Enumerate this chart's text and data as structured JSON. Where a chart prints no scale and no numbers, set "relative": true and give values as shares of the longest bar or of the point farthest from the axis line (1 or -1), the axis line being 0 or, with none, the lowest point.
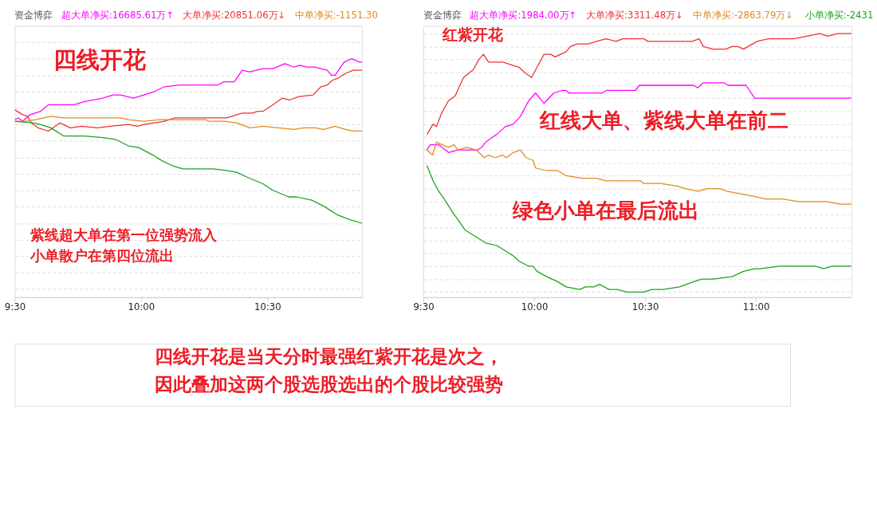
{
  "chart_data": [
    {
      "type": "line",
      "title": "资金博弈",
      "relative": true,
      "grid": "y",
      "legend": "top",
      "xlim": [
        9.5,
        10.875
      ],
      "xticks": [
        {
          "value": 9.5,
          "label": "9:30"
        },
        {
          "value": 10,
          "label": "10:00"
        },
        {
          "value": 10.5,
          "label": "10:30"
        }
      ],
      "annotations": [
        "四线开花",
        "紫线超大单在第一位强势流入",
        "小单散户在第四位流出"
      ],
      "series": [
        {
          "name": "超大单净买:16685.61万↑",
          "color": "#ff00ff",
          "x": [
            9.5,
            9.515,
            9.531,
            9.561,
            9.602,
            9.633,
            9.674,
            9.735,
            9.776,
            9.848,
            9.889,
            9.919,
            9.97,
            10.011,
            10.052,
            10.093,
            10.154,
            10.195,
            10.257,
            10.303,
            10.328,
            10.369,
            10.4,
            10.43,
            10.482,
            10.522,
            10.569,
            10.604,
            10.63,
            10.655,
            10.686,
            10.737,
            10.753,
            10.768,
            10.804,
            10.834,
            10.865,
            10.875
          ],
          "values": [
            0.63,
            0.64,
            0.62,
            0.66,
            0.68,
            0.72,
            0.72,
            0.72,
            0.74,
            0.76,
            0.78,
            0.78,
            0.76,
            0.78,
            0.8,
            0.83,
            0.84,
            0.84,
            0.84,
            0.84,
            0.86,
            0.86,
            0.93,
            0.92,
            0.94,
            0.94,
            0.97,
            0.95,
            0.96,
            0.95,
            0.95,
            0.93,
            0.9,
            0.9,
            0.98,
            1.0,
            0.98,
            0.98
          ]
        },
        {
          "name": "大单净买:20851.06万↓",
          "color": "#f03030",
          "x": [
            9.5,
            9.531,
            9.551,
            9.566,
            9.592,
            9.633,
            9.679,
            9.72,
            9.766,
            9.827,
            9.878,
            9.95,
            9.986,
            10.011,
            10.093,
            10.134,
            10.195,
            10.277,
            10.338,
            10.4,
            10.441,
            10.461,
            10.482,
            10.522,
            10.558,
            10.589,
            10.625,
            10.681,
            10.712,
            10.737,
            10.758,
            10.778,
            10.809,
            10.839,
            10.875
          ],
          "values": [
            0.69,
            0.66,
            0.65,
            0.61,
            0.58,
            0.56,
            0.61,
            0.58,
            0.59,
            0.58,
            0.59,
            0.6,
            0.59,
            0.6,
            0.62,
            0.64,
            0.64,
            0.64,
            0.64,
            0.67,
            0.67,
            0.68,
            0.68,
            0.72,
            0.76,
            0.75,
            0.77,
            0.78,
            0.83,
            0.84,
            0.87,
            0.88,
            0.91,
            0.93,
            0.93
          ]
        },
        {
          "name": "中单净买:-1151.30",
          "color": "#e08a1e",
          "x": [
            9.5,
            9.541,
            9.582,
            9.643,
            9.694,
            9.725,
            9.766,
            9.848,
            9.919,
            9.95,
            10.011,
            10.073,
            10.113,
            10.154,
            10.257,
            10.267,
            10.328,
            10.379,
            10.43,
            10.482,
            10.543,
            10.604,
            10.645,
            10.691,
            10.722,
            10.768,
            10.809,
            10.839,
            10.875
          ],
          "values": [
            0.62,
            0.62,
            0.63,
            0.65,
            0.64,
            0.64,
            0.64,
            0.64,
            0.64,
            0.63,
            0.62,
            0.63,
            0.63,
            0.63,
            0.63,
            0.62,
            0.62,
            0.61,
            0.58,
            0.59,
            0.58,
            0.57,
            0.58,
            0.58,
            0.57,
            0.59,
            0.57,
            0.56,
            0.56
          ]
        },
        {
          "color": "#1aa31a",
          "x": [
            9.5,
            9.572,
            9.602,
            9.643,
            9.694,
            9.776,
            9.848,
            9.899,
            9.95,
            9.991,
            10.052,
            10.083,
            10.124,
            10.165,
            10.206,
            10.287,
            10.338,
            10.379,
            10.42,
            10.482,
            10.522,
            10.584,
            10.615,
            10.676,
            10.727,
            10.778,
            10.829,
            10.875
          ],
          "values": [
            0.62,
            0.61,
            0.6,
            0.58,
            0.53,
            0.53,
            0.52,
            0.51,
            0.47,
            0.46,
            0.41,
            0.38,
            0.35,
            0.33,
            0.33,
            0.33,
            0.32,
            0.31,
            0.28,
            0.24,
            0.2,
            0.16,
            0.16,
            0.14,
            0.1,
            0.05,
            0.02,
            0.0
          ]
        }
      ]
    },
    {
      "type": "line",
      "title": "资金博弈",
      "relative": true,
      "grid": "y",
      "legend": "top",
      "xlim": [
        9.5,
        11.431
      ],
      "xticks": [
        {
          "value": 9.5,
          "label": "9:30"
        },
        {
          "value": 10,
          "label": "10:00"
        },
        {
          "value": 10.5,
          "label": "10:30"
        },
        {
          "value": 11,
          "label": "11:00"
        }
      ],
      "annotations": [
        "红紫开花",
        "红线大单、紫线大单在前二",
        "绿色小单在最后流出",
        "四线开花是当天分时最强红紫开花是次之，",
        "因此叠加这两个股选股选出的个股比较强势"
      ],
      "series": [
        {
          "name": "超大单净买:1984.00万↑",
          "color": "#ff00ff",
          "x": [
            9.516,
            9.531,
            9.569,
            9.613,
            9.656,
            9.744,
            9.763,
            9.781,
            9.831,
            9.869,
            9.906,
            9.938,
            9.975,
            10.006,
            10.044,
            10.088,
            10.125,
            10.144,
            10.156,
            10.306,
            10.325,
            10.456,
            10.475,
            10.719,
            10.738,
            10.763,
            10.856,
            10.875,
            10.956,
            10.994,
            11.431
          ],
          "values": [
            0.55,
            0.57,
            0.57,
            0.54,
            0.55,
            0.55,
            0.56,
            0.58,
            0.61,
            0.64,
            0.65,
            0.68,
            0.74,
            0.77,
            0.73,
            0.77,
            0.78,
            0.78,
            0.77,
            0.77,
            0.78,
            0.78,
            0.8,
            0.8,
            0.79,
            0.81,
            0.81,
            0.8,
            0.8,
            0.75,
            0.75
          ]
        },
        {
          "name": "大单净买:3311.48万↓",
          "color": "#f03030",
          "x": [
            9.516,
            9.544,
            9.559,
            9.581,
            9.613,
            9.644,
            9.681,
            9.725,
            9.75,
            9.771,
            9.794,
            9.831,
            9.859,
            9.894,
            9.931,
            9.956,
            9.988,
            10.013,
            10.044,
            10.075,
            10.094,
            10.144,
            10.163,
            10.194,
            10.244,
            10.281,
            10.325,
            10.369,
            10.4,
            10.494,
            10.513,
            10.594,
            10.619,
            10.713,
            10.744,
            10.763,
            10.806,
            10.863,
            10.894,
            10.919,
            10.944,
            11.006,
            11.056,
            11.106,
            11.169,
            11.231,
            11.288,
            11.325,
            11.369,
            11.431
          ],
          "values": [
            0.61,
            0.65,
            0.64,
            0.69,
            0.74,
            0.76,
            0.83,
            0.86,
            0.9,
            0.92,
            0.89,
            0.89,
            0.89,
            0.88,
            0.87,
            0.85,
            0.83,
            0.87,
            0.92,
            0.92,
            0.91,
            0.93,
            0.95,
            0.96,
            0.96,
            0.97,
            0.98,
            0.97,
            0.98,
            0.98,
            0.97,
            0.97,
            0.97,
            0.97,
            0.98,
            0.95,
            0.94,
            0.94,
            0.95,
            0.95,
            0.94,
            0.97,
            0.98,
            0.98,
            0.98,
            0.99,
            1.0,
            0.99,
            1.0,
            1.0
          ]
        },
        {
          "name": "中单净买:-2863.79万↓",
          "color": "#e08a1e",
          "x": [
            9.516,
            9.541,
            9.559,
            9.613,
            9.638,
            9.656,
            9.694,
            9.738,
            9.775,
            9.794,
            9.825,
            9.856,
            9.875,
            9.906,
            9.938,
            9.963,
            9.994,
            10.006,
            10.056,
            10.106,
            10.144,
            10.219,
            10.281,
            10.325,
            10.369,
            10.481,
            10.494,
            10.569,
            10.644,
            10.681,
            10.738,
            10.781,
            10.838,
            10.869,
            10.931,
            10.994,
            11.044,
            11.119,
            11.194,
            11.256,
            11.319,
            11.381,
            11.431
          ],
          "values": [
            0.55,
            0.53,
            0.58,
            0.56,
            0.57,
            0.55,
            0.56,
            0.55,
            0.52,
            0.53,
            0.52,
            0.53,
            0.52,
            0.54,
            0.55,
            0.52,
            0.51,
            0.48,
            0.47,
            0.47,
            0.45,
            0.44,
            0.44,
            0.43,
            0.43,
            0.43,
            0.42,
            0.42,
            0.41,
            0.4,
            0.39,
            0.4,
            0.4,
            0.39,
            0.38,
            0.37,
            0.36,
            0.36,
            0.35,
            0.35,
            0.35,
            0.34,
            0.34
          ]
        },
        {
          "name": "小单净买:-2431",
          "color": "#1aa31a",
          "x": [
            9.516,
            9.544,
            9.569,
            9.594,
            9.631,
            9.656,
            9.688,
            9.744,
            9.781,
            9.831,
            9.869,
            9.906,
            9.931,
            9.975,
            9.994,
            10.013,
            10.056,
            10.106,
            10.144,
            10.206,
            10.231,
            10.269,
            10.294,
            10.338,
            10.375,
            10.419,
            10.469,
            10.494,
            10.531,
            10.581,
            10.656,
            10.719,
            10.756,
            10.806,
            10.894,
            10.944,
            10.994,
            11.019,
            11.106,
            11.194,
            11.269,
            11.306,
            11.344,
            11.431
          ],
          "values": [
            0.49,
            0.43,
            0.39,
            0.36,
            0.31,
            0.28,
            0.24,
            0.21,
            0.19,
            0.18,
            0.16,
            0.14,
            0.12,
            0.1,
            0.1,
            0.08,
            0.06,
            0.04,
            0.02,
            0.01,
            0.02,
            0.02,
            0.03,
            0.01,
            0.01,
            0.0,
            0.0,
            0.0,
            0.01,
            0.01,
            0.02,
            0.04,
            0.05,
            0.05,
            0.06,
            0.08,
            0.09,
            0.09,
            0.1,
            0.1,
            0.1,
            0.09,
            0.1,
            0.1
          ]
        }
      ]
    }
  ]
}
